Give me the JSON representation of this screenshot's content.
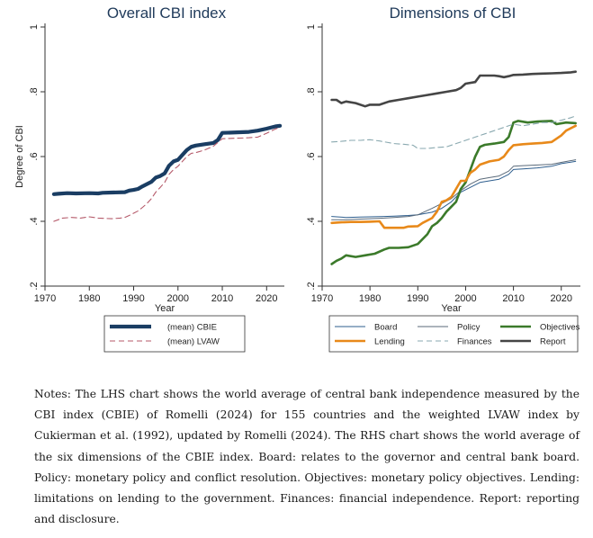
{
  "chart_data": [
    {
      "type": "line",
      "title": "Overall CBI index",
      "xlabel": "Year",
      "ylabel": "Degree of CBI",
      "xlim": [
        1970,
        2024
      ],
      "ylim": [
        0.2,
        1.0
      ],
      "xticks": [
        "1970",
        "1980",
        "1990",
        "2000",
        "2010",
        "2020"
      ],
      "yticks": [
        ".2",
        ".4",
        ".6",
        ".8",
        "1"
      ],
      "grid": false,
      "legend_placement": "bottom",
      "series": [
        {
          "name": "(mean) CBIE",
          "color": "#1a3d63",
          "style": "solid-thick",
          "x": [
            1972,
            1973,
            1975,
            1977,
            1980,
            1982,
            1983,
            1985,
            1988,
            1989,
            1990,
            1991,
            1992,
            1993,
            1994,
            1995,
            1996,
            1997,
            1998,
            1999,
            2000,
            2001,
            2002,
            2003,
            2004,
            2006,
            2008,
            2009,
            2010,
            2012,
            2014,
            2016,
            2018,
            2020,
            2022,
            2023
          ],
          "y": [
            0.484,
            0.485,
            0.487,
            0.486,
            0.487,
            0.486,
            0.488,
            0.489,
            0.49,
            0.495,
            0.497,
            0.5,
            0.508,
            0.515,
            0.522,
            0.535,
            0.54,
            0.548,
            0.572,
            0.585,
            0.59,
            0.605,
            0.62,
            0.63,
            0.634,
            0.638,
            0.642,
            0.651,
            0.673,
            0.674,
            0.675,
            0.676,
            0.68,
            0.686,
            0.693,
            0.695
          ]
        },
        {
          "name": "(mean) LVAW",
          "color": "#b55a6a",
          "style": "dashed",
          "x": [
            1972,
            1974,
            1976,
            1978,
            1980,
            1982,
            1985,
            1987,
            1988,
            1989,
            1990,
            1991,
            1992,
            1993,
            1994,
            1995,
            1996,
            1997,
            1998,
            1999,
            2000,
            2001,
            2002,
            2003,
            2004,
            2006,
            2008,
            2010,
            2012,
            2014,
            2016,
            2018,
            2020,
            2022,
            2023
          ],
          "y": [
            0.4,
            0.41,
            0.412,
            0.41,
            0.414,
            0.41,
            0.408,
            0.41,
            0.412,
            0.418,
            0.425,
            0.432,
            0.443,
            0.455,
            0.47,
            0.49,
            0.505,
            0.52,
            0.545,
            0.56,
            0.57,
            0.585,
            0.6,
            0.61,
            0.612,
            0.62,
            0.632,
            0.655,
            0.656,
            0.657,
            0.658,
            0.66,
            0.672,
            0.685,
            0.69
          ]
        }
      ]
    },
    {
      "type": "line",
      "title": "Dimensions of CBI",
      "xlabel": "Year",
      "ylabel": "",
      "xlim": [
        1970,
        2024
      ],
      "ylim": [
        0.2,
        1.0
      ],
      "xticks": [
        "1970",
        "1980",
        "1990",
        "2000",
        "2010",
        "2020"
      ],
      "yticks": [
        ".2",
        ".4",
        ".6",
        ".8",
        "1"
      ],
      "grid": false,
      "legend_placement": "bottom",
      "series": [
        {
          "name": "Board",
          "color": "#2e5e8e",
          "style": "thin",
          "x": [
            1972,
            1975,
            1978,
            1980,
            1983,
            1985,
            1988,
            1990,
            1993,
            1995,
            1997,
            1999,
            2001,
            2003,
            2005,
            2007,
            2009,
            2010,
            2012,
            2015,
            2018,
            2020,
            2023
          ],
          "y": [
            0.415,
            0.412,
            0.413,
            0.414,
            0.415,
            0.416,
            0.418,
            0.42,
            0.428,
            0.44,
            0.46,
            0.49,
            0.505,
            0.52,
            0.525,
            0.53,
            0.545,
            0.56,
            0.562,
            0.565,
            0.57,
            0.578,
            0.585
          ]
        },
        {
          "name": "Policy",
          "color": "#5a6a7a",
          "style": "thin",
          "x": [
            1972,
            1975,
            1978,
            1980,
            1983,
            1985,
            1988,
            1990,
            1993,
            1995,
            1997,
            1999,
            2001,
            2003,
            2005,
            2007,
            2009,
            2010,
            2012,
            2015,
            2018,
            2020,
            2023
          ],
          "y": [
            0.405,
            0.405,
            0.407,
            0.408,
            0.41,
            0.412,
            0.415,
            0.42,
            0.44,
            0.455,
            0.47,
            0.495,
            0.515,
            0.53,
            0.535,
            0.54,
            0.555,
            0.57,
            0.572,
            0.574,
            0.576,
            0.582,
            0.59
          ]
        },
        {
          "name": "Objectives",
          "color": "#3b7a2a",
          "style": "thick",
          "x": [
            1972,
            1973,
            1974,
            1975,
            1977,
            1979,
            1981,
            1983,
            1984,
            1986,
            1988,
            1990,
            1992,
            1993,
            1994,
            1995,
            1996,
            1997,
            1998,
            1999,
            2000,
            2001,
            2002,
            2003,
            2004,
            2006,
            2008,
            2009,
            2010,
            2011,
            2013,
            2015,
            2018,
            2019,
            2021,
            2023
          ],
          "y": [
            0.268,
            0.278,
            0.285,
            0.295,
            0.29,
            0.295,
            0.3,
            0.313,
            0.318,
            0.318,
            0.32,
            0.33,
            0.36,
            0.385,
            0.395,
            0.41,
            0.43,
            0.445,
            0.46,
            0.5,
            0.52,
            0.56,
            0.6,
            0.63,
            0.636,
            0.64,
            0.645,
            0.66,
            0.705,
            0.71,
            0.705,
            0.708,
            0.71,
            0.7,
            0.705,
            0.703
          ]
        },
        {
          "name": "Lending",
          "color": "#e8891a",
          "style": "thick",
          "x": [
            1972,
            1974,
            1976,
            1978,
            1980,
            1982,
            1983,
            1985,
            1987,
            1988,
            1990,
            1991,
            1993,
            1994,
            1995,
            1996,
            1997,
            1998,
            1999,
            2000,
            2001,
            2002,
            2003,
            2005,
            2007,
            2008,
            2009,
            2010,
            2012,
            2014,
            2016,
            2018,
            2019,
            2020,
            2021,
            2023
          ],
          "y": [
            0.395,
            0.397,
            0.398,
            0.398,
            0.399,
            0.4,
            0.38,
            0.38,
            0.38,
            0.384,
            0.385,
            0.395,
            0.41,
            0.43,
            0.46,
            0.465,
            0.475,
            0.5,
            0.525,
            0.525,
            0.55,
            0.56,
            0.575,
            0.585,
            0.59,
            0.6,
            0.62,
            0.635,
            0.638,
            0.64,
            0.642,
            0.645,
            0.655,
            0.665,
            0.68,
            0.695
          ]
        },
        {
          "name": "Finances",
          "color": "#8aa9b0",
          "style": "dashed",
          "x": [
            1972,
            1974,
            1976,
            1978,
            1980,
            1982,
            1985,
            1987,
            1989,
            1990,
            1992,
            1994,
            1996,
            1998,
            2000,
            2002,
            2004,
            2006,
            2008,
            2010,
            2012,
            2014,
            2016,
            2018,
            2020,
            2022,
            2023
          ],
          "y": [
            0.645,
            0.647,
            0.65,
            0.65,
            0.652,
            0.648,
            0.64,
            0.638,
            0.635,
            0.625,
            0.625,
            0.628,
            0.63,
            0.64,
            0.65,
            0.66,
            0.67,
            0.68,
            0.69,
            0.7,
            0.695,
            0.7,
            0.705,
            0.705,
            0.712,
            0.72,
            0.725
          ]
        },
        {
          "name": "Report",
          "color": "#454545",
          "style": "thick",
          "x": [
            1972,
            1973,
            1974,
            1975,
            1977,
            1979,
            1980,
            1982,
            1984,
            1986,
            1988,
            1990,
            1992,
            1994,
            1996,
            1998,
            1999,
            2000,
            2002,
            2003,
            2004,
            2006,
            2007,
            2008,
            2009,
            2010,
            2012,
            2014,
            2016,
            2018,
            2020,
            2022,
            2023
          ],
          "y": [
            0.775,
            0.775,
            0.765,
            0.77,
            0.765,
            0.755,
            0.76,
            0.76,
            0.77,
            0.775,
            0.78,
            0.785,
            0.79,
            0.795,
            0.8,
            0.805,
            0.812,
            0.825,
            0.83,
            0.85,
            0.85,
            0.85,
            0.848,
            0.845,
            0.848,
            0.852,
            0.853,
            0.855,
            0.856,
            0.857,
            0.858,
            0.86,
            0.862
          ]
        }
      ]
    }
  ],
  "notes": "Notes: The LHS chart shows the world average of central bank independence measured by the CBI index (CBIE) of Romelli (2024) for 155 countries and the weighted LVAW index by Cukierman et al. (1992), updated by Romelli (2024). The RHS chart shows the world average of the six dimensions of the CBIE index. Board: relates to the governor and central bank board. Policy: monetary policy and conflict resolution. Objectives: monetary policy objectives. Lending: limitations on lending to the government. Finances: financial independence. Report: reporting and disclosure."
}
